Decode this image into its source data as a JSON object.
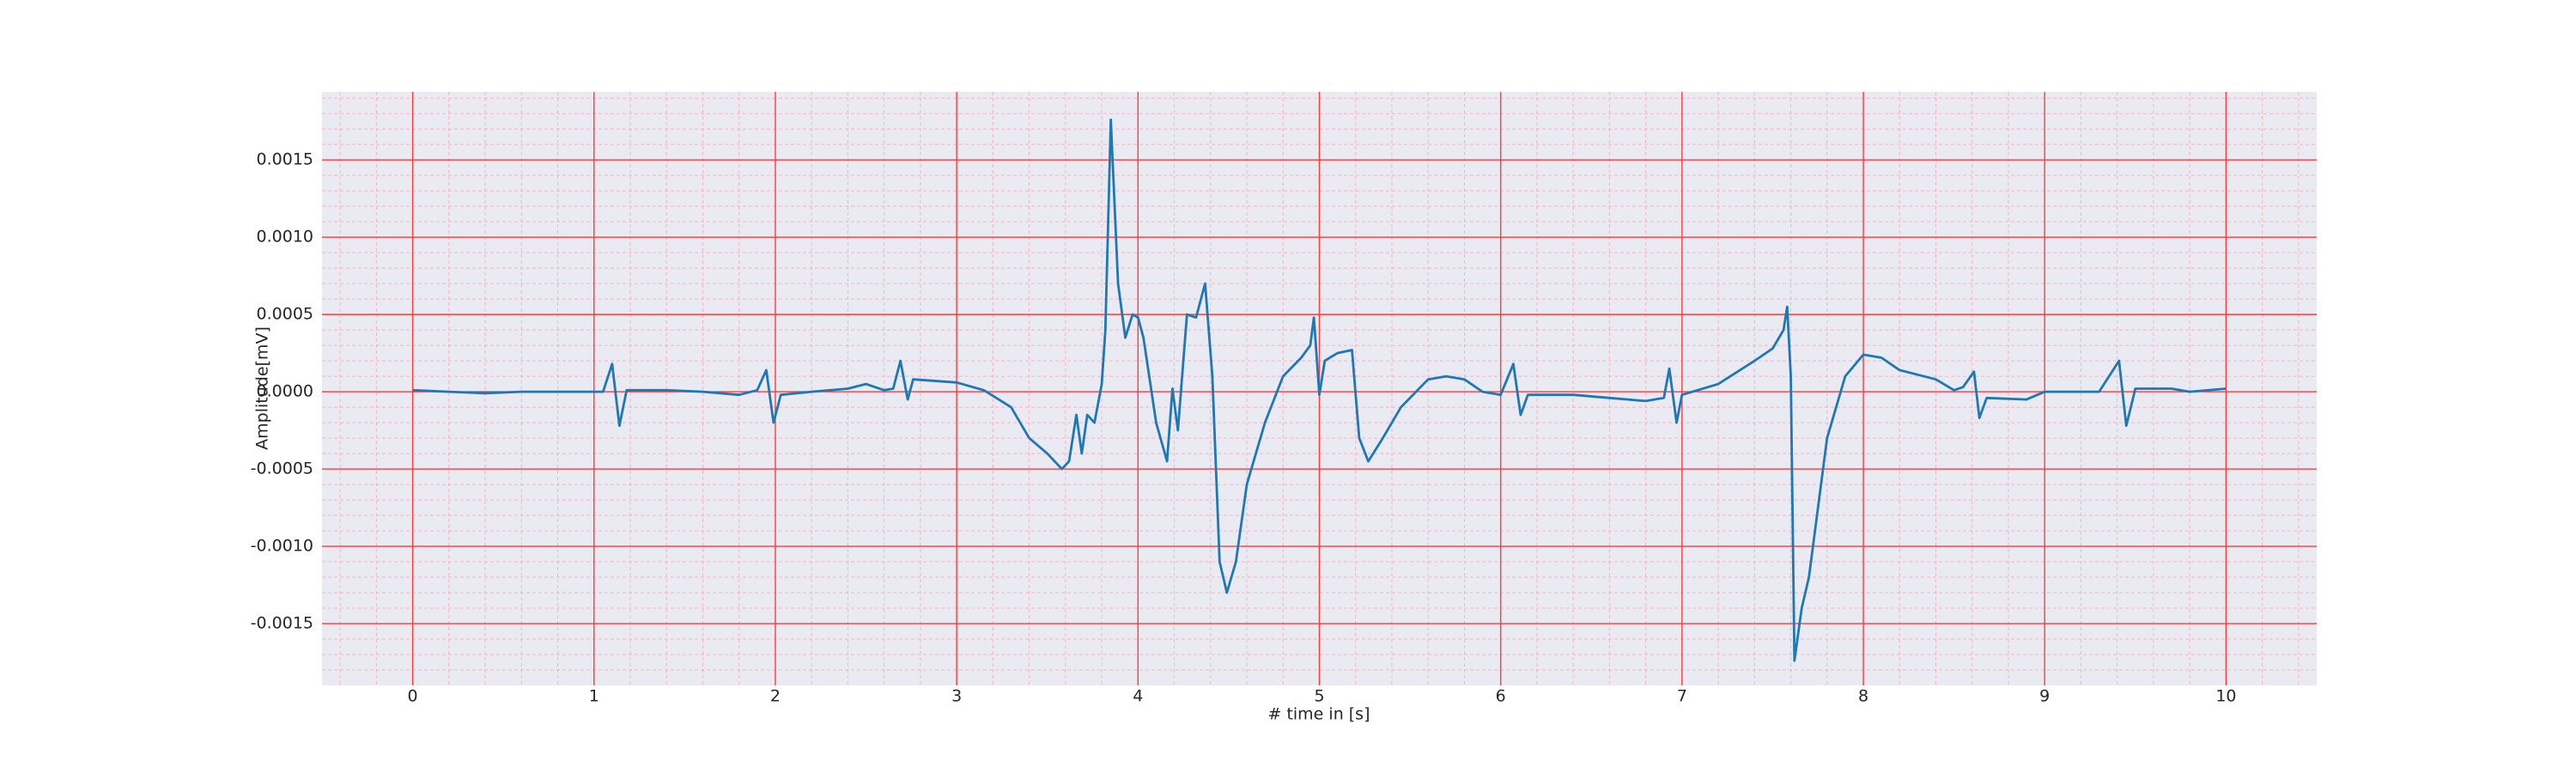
{
  "chart_data": {
    "type": "line",
    "xlabel": "# time in [s]",
    "ylabel": "Amplitude[mV]",
    "color": "#1f77b4",
    "grid": true,
    "xlim": [
      -0.5,
      10.5
    ],
    "ylim": [
      -0.0019,
      0.00194
    ],
    "xticks": [
      0,
      1,
      2,
      3,
      4,
      5,
      6,
      7,
      8,
      9,
      10
    ],
    "yticks": [
      {
        "value": -0.0015,
        "label": "-0.0015"
      },
      {
        "value": -0.001,
        "label": "-0.0010"
      },
      {
        "value": -0.0005,
        "label": "-0.0005"
      },
      {
        "value": 0,
        "label": "0.0000"
      },
      {
        "value": 0.0005,
        "label": "0.0005"
      },
      {
        "value": 0.001,
        "label": "0.0010"
      },
      {
        "value": 0.0015,
        "label": "0.0015"
      }
    ],
    "x": [
      0,
      0.2,
      0.4,
      0.6,
      0.8,
      1.0,
      1.05,
      1.1,
      1.14,
      1.18,
      1.4,
      1.6,
      1.8,
      1.9,
      1.95,
      1.99,
      2.03,
      2.2,
      2.4,
      2.5,
      2.6,
      2.65,
      2.69,
      2.73,
      2.76,
      3.0,
      3.15,
      3.3,
      3.4,
      3.5,
      3.58,
      3.62,
      3.66,
      3.69,
      3.72,
      3.76,
      3.8,
      3.82,
      3.85,
      3.89,
      3.93,
      3.97,
      4.0,
      4.03,
      4.1,
      4.16,
      4.19,
      4.22,
      4.27,
      4.32,
      4.37,
      4.41,
      4.45,
      4.49,
      4.54,
      4.6,
      4.7,
      4.8,
      4.9,
      4.95,
      4.97,
      5.0,
      5.03,
      5.1,
      5.18,
      5.22,
      5.27,
      5.35,
      5.45,
      5.6,
      5.7,
      5.8,
      5.9,
      6.0,
      6.07,
      6.11,
      6.15,
      6.4,
      6.6,
      6.8,
      6.9,
      6.93,
      6.97,
      7.0,
      7.2,
      7.4,
      7.5,
      7.56,
      7.58,
      7.6,
      7.62,
      7.66,
      7.7,
      7.8,
      7.9,
      8.0,
      8.1,
      8.2,
      8.4,
      8.5,
      8.55,
      8.61,
      8.64,
      8.68,
      8.9,
      9.0,
      9.3,
      9.41,
      9.45,
      9.5,
      9.7,
      9.8,
      10.0
    ],
    "values": [
      1e-05,
      0,
      -1e-05,
      0,
      0,
      0,
      0,
      0.00018,
      -0.00022,
      1e-05,
      1e-05,
      0,
      -2e-05,
      1e-05,
      0.00014,
      -0.0002,
      -2e-05,
      0,
      2e-05,
      5e-05,
      1e-05,
      2e-05,
      0.0002,
      -5e-05,
      8e-05,
      6e-05,
      1e-05,
      -0.0001,
      -0.0003,
      -0.0004,
      -0.0005,
      -0.00045,
      -0.00015,
      -0.0004,
      -0.00015,
      -0.0002,
      5e-05,
      0.0004,
      0.00176,
      0.0007,
      0.00035,
      0.0005,
      0.00048,
      0.00035,
      -0.0002,
      -0.00045,
      2e-05,
      -0.00025,
      0.0005,
      0.00048,
      0.0007,
      0.0001,
      -0.0011,
      -0.0013,
      -0.0011,
      -0.0006,
      -0.0002,
      0.0001,
      0.00022,
      0.0003,
      0.00048,
      -2e-05,
      0.0002,
      0.00025,
      0.00027,
      -0.0003,
      -0.00045,
      -0.0003,
      -0.0001,
      8e-05,
      0.0001,
      8e-05,
      0,
      -2e-05,
      0.00018,
      -0.00015,
      -2e-05,
      -2e-05,
      -4e-05,
      -6e-05,
      -4e-05,
      0.00015,
      -0.0002,
      -2e-05,
      5e-05,
      0.0002,
      0.00028,
      0.0004,
      0.00055,
      0.0001,
      -0.00174,
      -0.0014,
      -0.0012,
      -0.0003,
      0.0001,
      0.00024,
      0.00022,
      0.00014,
      8e-05,
      1e-05,
      3e-05,
      0.00013,
      -0.00017,
      -4e-05,
      -5e-05,
      0,
      0,
      0.0002,
      -0.00022,
      2e-05,
      2e-05,
      0,
      2e-05
    ]
  }
}
